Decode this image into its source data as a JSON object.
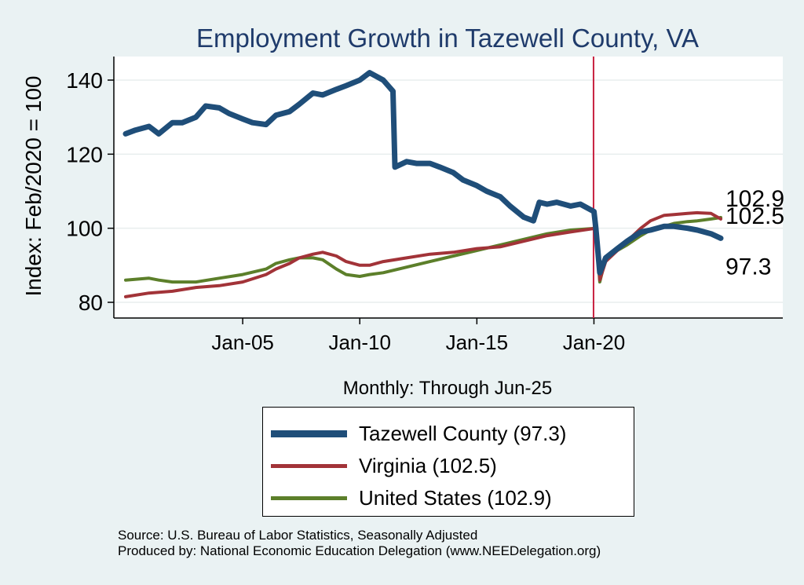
{
  "chart_data": {
    "type": "line",
    "title": "Employment Growth in Tazewell  County, VA",
    "xlabel": "Monthly: Through Jun-25",
    "ylabel": "Index: Feb/2020 = 100",
    "x_range": [
      "2000-01",
      "2025-06"
    ],
    "x_ticks": [
      {
        "date": "2005-01",
        "label": "Jan-05"
      },
      {
        "date": "2010-01",
        "label": "Jan-10"
      },
      {
        "date": "2015-01",
        "label": "Jan-15"
      },
      {
        "date": "2020-01",
        "label": "Jan-20"
      }
    ],
    "ylim": [
      78,
      147
    ],
    "y_ticks": [
      80,
      100,
      120,
      140
    ],
    "grid": true,
    "reference_line": {
      "date": "2020-02",
      "color": "#c8203f"
    },
    "legend_position": "bottom",
    "series": [
      {
        "name": "Tazewell  County (97.3)",
        "color": "#1f4e79",
        "end_label": "97.3",
        "points": [
          [
            "2000-01",
            125.5
          ],
          [
            "2000-06",
            126.5
          ],
          [
            "2001-01",
            127.5
          ],
          [
            "2001-06",
            125.5
          ],
          [
            "2002-01",
            128.5
          ],
          [
            "2002-06",
            128.5
          ],
          [
            "2003-01",
            130
          ],
          [
            "2003-06",
            133
          ],
          [
            "2004-01",
            132.5
          ],
          [
            "2004-06",
            131
          ],
          [
            "2005-01",
            129.5
          ],
          [
            "2005-06",
            128.5
          ],
          [
            "2006-01",
            128
          ],
          [
            "2006-06",
            130.5
          ],
          [
            "2007-01",
            131.5
          ],
          [
            "2007-06",
            133.5
          ],
          [
            "2008-01",
            136.5
          ],
          [
            "2008-06",
            136
          ],
          [
            "2009-01",
            137.5
          ],
          [
            "2009-06",
            138.5
          ],
          [
            "2010-01",
            140
          ],
          [
            "2010-06",
            142
          ],
          [
            "2011-01",
            140
          ],
          [
            "2011-06",
            137
          ],
          [
            "2011-07",
            116.5
          ],
          [
            "2012-01",
            118
          ],
          [
            "2012-06",
            117.5
          ],
          [
            "2013-01",
            117.5
          ],
          [
            "2013-06",
            116.5
          ],
          [
            "2014-01",
            115
          ],
          [
            "2014-06",
            113
          ],
          [
            "2015-01",
            111.5
          ],
          [
            "2015-06",
            110
          ],
          [
            "2016-01",
            108.5
          ],
          [
            "2016-06",
            106
          ],
          [
            "2017-01",
            103
          ],
          [
            "2017-06",
            102
          ],
          [
            "2017-09",
            107
          ],
          [
            "2018-01",
            106.5
          ],
          [
            "2018-06",
            107
          ],
          [
            "2019-01",
            106
          ],
          [
            "2019-06",
            106.5
          ],
          [
            "2020-01",
            104.5
          ],
          [
            "2020-02",
            100
          ],
          [
            "2020-04",
            88
          ],
          [
            "2020-07",
            92
          ],
          [
            "2021-01",
            94.5
          ],
          [
            "2021-06",
            96.5
          ],
          [
            "2022-01",
            99
          ],
          [
            "2022-06",
            99.5
          ],
          [
            "2023-01",
            100.5
          ],
          [
            "2023-06",
            100.5
          ],
          [
            "2024-01",
            100
          ],
          [
            "2024-06",
            99.5
          ],
          [
            "2025-01",
            98.5
          ],
          [
            "2025-06",
            97.3
          ]
        ]
      },
      {
        "name": "Virginia (102.5)",
        "color": "#a23338",
        "end_label": "102.5",
        "points": [
          [
            "2000-01",
            81.5
          ],
          [
            "2001-01",
            82.5
          ],
          [
            "2002-01",
            83
          ],
          [
            "2003-01",
            84
          ],
          [
            "2004-01",
            84.5
          ],
          [
            "2005-01",
            85.5
          ],
          [
            "2006-01",
            87.5
          ],
          [
            "2006-06",
            89
          ],
          [
            "2007-01",
            90.5
          ],
          [
            "2007-06",
            92
          ],
          [
            "2008-01",
            93
          ],
          [
            "2008-06",
            93.5
          ],
          [
            "2009-01",
            92.5
          ],
          [
            "2009-06",
            91
          ],
          [
            "2010-01",
            90
          ],
          [
            "2010-06",
            90
          ],
          [
            "2011-01",
            91
          ],
          [
            "2012-01",
            92
          ],
          [
            "2013-01",
            93
          ],
          [
            "2014-01",
            93.5
          ],
          [
            "2015-01",
            94.5
          ],
          [
            "2016-01",
            95
          ],
          [
            "2017-01",
            96.5
          ],
          [
            "2018-01",
            98
          ],
          [
            "2019-01",
            99
          ],
          [
            "2020-02",
            100
          ],
          [
            "2020-04",
            86
          ],
          [
            "2020-07",
            91
          ],
          [
            "2021-01",
            94
          ],
          [
            "2021-06",
            96.5
          ],
          [
            "2022-01",
            100
          ],
          [
            "2022-06",
            102
          ],
          [
            "2023-01",
            103.5
          ],
          [
            "2023-06",
            103.7
          ],
          [
            "2024-01",
            104
          ],
          [
            "2024-06",
            104.2
          ],
          [
            "2025-01",
            104
          ],
          [
            "2025-06",
            102.5
          ]
        ]
      },
      {
        "name": "United States (102.9)",
        "color": "#5c7f2a",
        "end_label": "102.9",
        "points": [
          [
            "2000-01",
            86
          ],
          [
            "2001-01",
            86.5
          ],
          [
            "2001-06",
            86
          ],
          [
            "2002-01",
            85.5
          ],
          [
            "2003-01",
            85.5
          ],
          [
            "2004-01",
            86.5
          ],
          [
            "2005-01",
            87.5
          ],
          [
            "2006-01",
            89
          ],
          [
            "2006-06",
            90.5
          ],
          [
            "2007-01",
            91.5
          ],
          [
            "2007-06",
            92
          ],
          [
            "2008-01",
            92
          ],
          [
            "2008-06",
            91.5
          ],
          [
            "2009-01",
            89
          ],
          [
            "2009-06",
            87.5
          ],
          [
            "2010-01",
            87
          ],
          [
            "2010-06",
            87.5
          ],
          [
            "2011-01",
            88
          ],
          [
            "2012-01",
            89.5
          ],
          [
            "2013-01",
            91
          ],
          [
            "2014-01",
            92.5
          ],
          [
            "2015-01",
            94
          ],
          [
            "2016-01",
            95.5
          ],
          [
            "2017-01",
            97
          ],
          [
            "2018-01",
            98.5
          ],
          [
            "2019-01",
            99.5
          ],
          [
            "2020-02",
            100
          ],
          [
            "2020-04",
            85.5
          ],
          [
            "2020-07",
            92
          ],
          [
            "2021-01",
            94
          ],
          [
            "2021-06",
            95.5
          ],
          [
            "2022-01",
            98
          ],
          [
            "2022-06",
            99.5
          ],
          [
            "2023-01",
            100.5
          ],
          [
            "2023-06",
            101.3
          ],
          [
            "2024-01",
            101.8
          ],
          [
            "2024-06",
            102
          ],
          [
            "2025-01",
            102.5
          ],
          [
            "2025-06",
            102.9
          ]
        ]
      }
    ]
  },
  "footer": {
    "source": "Source: U.S. Bureau of Labor Statistics, Seasonally Adjusted",
    "produced_by": "Produced by: National Economic Education Delegation (www.NEEDelegation.org)"
  }
}
